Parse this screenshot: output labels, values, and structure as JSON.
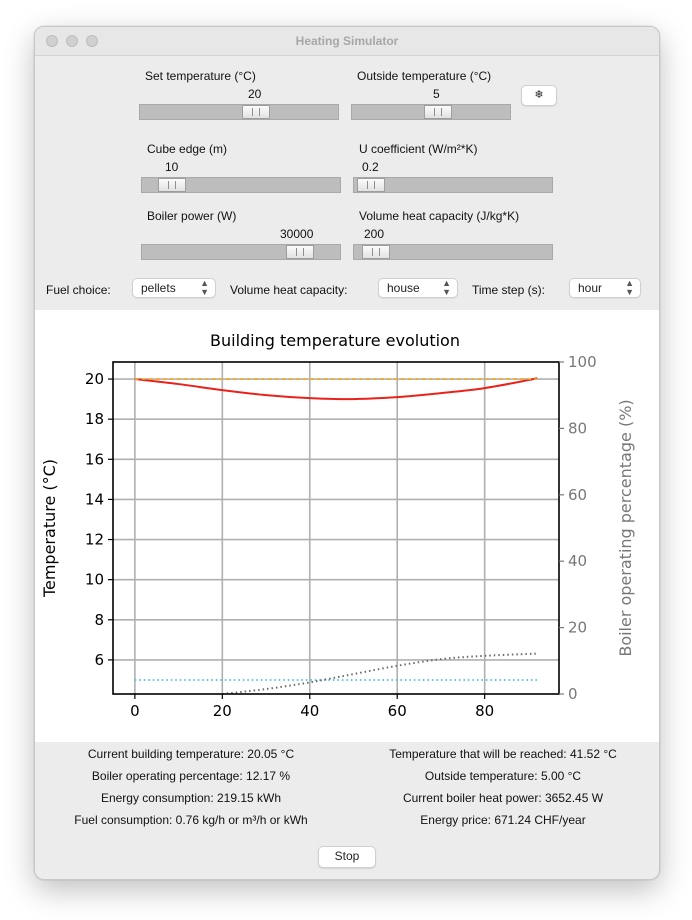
{
  "window": {
    "title": "Heating Simulator"
  },
  "controls": {
    "set_temperature": {
      "label": "Set temperature (°C)",
      "value": "20"
    },
    "outside_temperature": {
      "label": "Outside temperature (°C)",
      "value": "5"
    },
    "snow_button": "❄",
    "cube_edge": {
      "label": "Cube edge (m)",
      "value": "10"
    },
    "u_coefficient": {
      "label": "U coefficient (W/m²*K)",
      "value": "0.2"
    },
    "boiler_power": {
      "label": "Boiler power (W)",
      "value": "30000"
    },
    "volume_heat_capacity": {
      "label": "Volume heat capacity (J/kg*K)",
      "value": "200"
    }
  },
  "selectors": {
    "fuel_label": "Fuel choice:",
    "fuel_value": "pellets",
    "vhc_label": "Volume heat capacity:",
    "vhc_value": "house",
    "timestep_label": "Time step (s):",
    "timestep_value": "hour"
  },
  "chart_data": {
    "type": "line",
    "title": "Building temperature evolution",
    "ylabel": "Temperature (°C)",
    "y2label": "Boiler operating percentage (%)",
    "xlabel": "",
    "xlim": [
      -5,
      97
    ],
    "ylim": [
      4.3,
      20.85
    ],
    "y2lim": [
      0,
      100
    ],
    "xticks": [
      0,
      20,
      40,
      60,
      80
    ],
    "yticks": [
      6,
      8,
      10,
      12,
      14,
      16,
      18,
      20
    ],
    "y2ticks": [
      0,
      20,
      40,
      60,
      80,
      100
    ],
    "grid": true,
    "colors": {
      "building": "#e8231b",
      "setpoint": "#f5a623",
      "outside": "#5bc8e8",
      "boiler": "#6b6b6b"
    },
    "series": [
      {
        "key": "building",
        "axis": "left",
        "style": "solid",
        "x": [
          0,
          10,
          20,
          30,
          40,
          50,
          60,
          70,
          80,
          90,
          92
        ],
        "values": [
          20.0,
          19.75,
          19.45,
          19.2,
          19.05,
          19.0,
          19.1,
          19.3,
          19.55,
          19.95,
          20.05
        ]
      },
      {
        "key": "setpoint",
        "axis": "left",
        "style": "dashed",
        "x": [
          0,
          92
        ],
        "values": [
          20.0,
          20.0
        ]
      },
      {
        "key": "outside",
        "axis": "left",
        "style": "dotted",
        "x": [
          0,
          92
        ],
        "values": [
          5.0,
          5.0
        ]
      },
      {
        "key": "boiler",
        "axis": "right",
        "style": "dotted",
        "x": [
          20,
          30,
          40,
          50,
          60,
          70,
          80,
          92
        ],
        "values": [
          0,
          1.5,
          3.5,
          6,
          8.5,
          10.5,
          11.5,
          12.17
        ]
      }
    ]
  },
  "stats": {
    "left": [
      "Current building temperature: 20.05 °C",
      "Boiler operating percentage: 12.17 %",
      "Energy consumption: 219.15 kWh",
      "Fuel consumption: 0.76 kg/h or m³/h or kWh"
    ],
    "right": [
      "Temperature that will be reached: 41.52 °C",
      "Outside temperature: 5.00 °C",
      "Current boiler heat power: 3652.45 W",
      "Energy price: 671.24 CHF/year"
    ]
  },
  "stop_label": "Stop"
}
